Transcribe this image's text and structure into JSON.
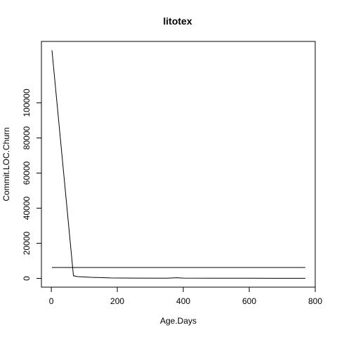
{
  "chart_data": {
    "type": "line",
    "title": "litotex",
    "xlabel": "Age.Days",
    "ylabel": "Commit.LOC.Churn",
    "xlim": [
      -30,
      800
    ],
    "ylim": [
      -5000,
      135000
    ],
    "x_ticks": [
      0,
      200,
      400,
      600,
      800
    ],
    "y_ticks": [
      0,
      20000,
      40000,
      60000,
      80000,
      100000
    ],
    "x_tick_labels": [
      "0",
      "200",
      "400",
      "600",
      "800"
    ],
    "y_tick_labels": [
      "0",
      "20000",
      "40000",
      "60000",
      "80000",
      "100000"
    ],
    "grid": false,
    "legend": "none",
    "series": [
      {
        "values": [
          {
            "x": 2,
            "y": 130000
          },
          {
            "x": 67,
            "y": 1500
          },
          {
            "x": 80,
            "y": 1000
          },
          {
            "x": 100,
            "y": 800
          },
          {
            "x": 120,
            "y": 600
          },
          {
            "x": 150,
            "y": 450
          },
          {
            "x": 180,
            "y": 250
          },
          {
            "x": 250,
            "y": 150
          },
          {
            "x": 350,
            "y": 100
          },
          {
            "x": 380,
            "y": 350
          },
          {
            "x": 400,
            "y": 150
          },
          {
            "x": 500,
            "y": 100
          },
          {
            "x": 600,
            "y": 80
          },
          {
            "x": 700,
            "y": 50
          },
          {
            "x": 770,
            "y": 50
          }
        ]
      },
      {
        "values": [
          {
            "x": 2,
            "y": 6200
          },
          {
            "x": 770,
            "y": 6200
          }
        ]
      }
    ],
    "colors": {
      "line": "#000000",
      "frame": "#000000",
      "background": "#ffffff"
    }
  }
}
